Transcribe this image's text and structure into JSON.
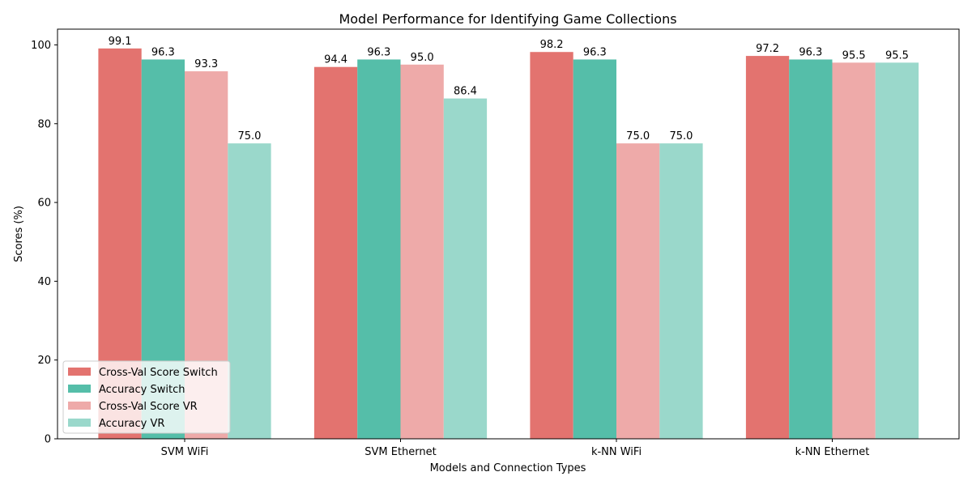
{
  "chart_data": {
    "type": "bar",
    "title": "Model Performance for Identifying Game Collections",
    "xlabel": "Models and Connection Types",
    "ylabel": "Scores (%)",
    "categories": [
      "SVM WiFi",
      "SVM Ethernet",
      "k-NN WiFi",
      "k-NN Ethernet"
    ],
    "ylim": [
      0,
      104
    ],
    "yticks": [
      0,
      20,
      40,
      60,
      80,
      100
    ],
    "grid": false,
    "legend_position": "lower-left",
    "series": [
      {
        "name": "Cross-Val Score Switch",
        "color": "#e3736f",
        "values": [
          99.1,
          94.4,
          98.2,
          97.2
        ]
      },
      {
        "name": "Accuracy Switch",
        "color": "#55bea9",
        "values": [
          96.3,
          96.3,
          96.3,
          96.3
        ]
      },
      {
        "name": "Cross-Val Score VR",
        "color": "#eeaaa9",
        "values": [
          93.3,
          95.0,
          75.0,
          95.5
        ]
      },
      {
        "name": "Accuracy VR",
        "color": "#9ad8cb",
        "values": [
          75.0,
          86.4,
          75.0,
          95.5
        ]
      }
    ]
  }
}
